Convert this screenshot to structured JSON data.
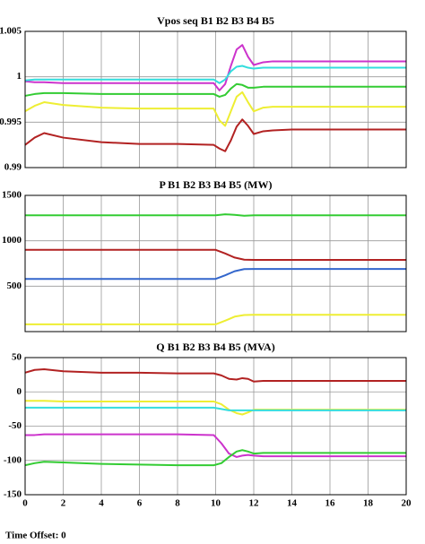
{
  "chart_data": [
    {
      "type": "line",
      "title": "Vpos seq B1 B2 B3 B4 B5",
      "x": [
        0,
        0.5,
        1,
        2,
        4,
        6,
        8,
        9.9,
        10.2,
        10.5,
        10.8,
        11.1,
        11.4,
        11.7,
        12,
        12.5,
        13,
        14,
        16,
        18,
        20
      ],
      "xlim": [
        0,
        20
      ],
      "xticks": [
        0,
        2,
        4,
        6,
        8,
        10,
        12,
        14,
        16,
        18,
        20
      ],
      "ylim": [
        0.99,
        1.005
      ],
      "yticks": [
        0.99,
        0.995,
        1,
        1.005
      ],
      "grid": true,
      "series": [
        {
          "color": "#cc33cc",
          "values": [
            0.9995,
            0.9994,
            0.9994,
            0.9993,
            0.9993,
            0.9993,
            0.9993,
            0.9993,
            0.9985,
            0.9992,
            1.0012,
            1.003,
            1.0035,
            1.0022,
            1.0013,
            1.0016,
            1.0017,
            1.0017,
            1.0017,
            1.0017,
            1.0017
          ]
        },
        {
          "color": "#33dddd",
          "values": [
            0.9996,
            0.9997,
            0.9997,
            0.9997,
            0.9997,
            0.9997,
            0.9997,
            0.9997,
            0.9993,
            0.9997,
            1.0006,
            1.0011,
            1.0012,
            1.001,
            1.0009,
            1.001,
            1.001,
            1.001,
            1.001,
            1.001,
            1.001
          ]
        },
        {
          "color": "#33cc33",
          "values": [
            0.9979,
            0.9981,
            0.9982,
            0.9982,
            0.9981,
            0.9981,
            0.9981,
            0.9981,
            0.9978,
            0.998,
            0.9987,
            0.9992,
            0.9991,
            0.9988,
            0.9988,
            0.9989,
            0.9989,
            0.9989,
            0.9989,
            0.9989,
            0.9989
          ]
        },
        {
          "color": "#eeee33",
          "values": [
            0.9962,
            0.9968,
            0.9972,
            0.9969,
            0.9966,
            0.9965,
            0.9965,
            0.9965,
            0.9952,
            0.9946,
            0.9962,
            0.9978,
            0.9983,
            0.9972,
            0.9962,
            0.9966,
            0.9967,
            0.9967,
            0.9967,
            0.9967,
            0.9967
          ]
        },
        {
          "color": "#b22222",
          "values": [
            0.9925,
            0.9933,
            0.9938,
            0.9933,
            0.9928,
            0.9926,
            0.9926,
            0.9925,
            0.9921,
            0.9918,
            0.993,
            0.9945,
            0.9953,
            0.9946,
            0.9937,
            0.994,
            0.9941,
            0.9942,
            0.9942,
            0.9942,
            0.9942
          ]
        }
      ]
    },
    {
      "type": "line",
      "title": "P B1 B2 B3 B4 B5 (MW)",
      "x": [
        0,
        2,
        4,
        6,
        8,
        10,
        10.5,
        11,
        11.5,
        12,
        14,
        16,
        18,
        20
      ],
      "xlim": [
        0,
        20
      ],
      "xticks": [
        0,
        2,
        4,
        6,
        8,
        10,
        12,
        14,
        16,
        18,
        20
      ],
      "ylim": [
        0,
        1500
      ],
      "yticks": [
        500,
        1000,
        1500
      ],
      "grid": true,
      "series": [
        {
          "color": "#33cc33",
          "values": [
            1280,
            1280,
            1280,
            1280,
            1280,
            1280,
            1292,
            1285,
            1276,
            1280,
            1280,
            1280,
            1280,
            1280
          ]
        },
        {
          "color": "#b22222",
          "values": [
            900,
            900,
            900,
            900,
            900,
            900,
            860,
            815,
            792,
            790,
            790,
            790,
            790,
            790
          ]
        },
        {
          "color": "#3366cc",
          "values": [
            580,
            580,
            580,
            580,
            580,
            580,
            620,
            665,
            688,
            690,
            690,
            690,
            690,
            690
          ]
        },
        {
          "color": "#eeee33",
          "values": [
            80,
            80,
            80,
            80,
            80,
            80,
            120,
            165,
            183,
            185,
            185,
            185,
            185,
            185
          ]
        }
      ]
    },
    {
      "type": "line",
      "title": "Q B1 B2 B3 B4 B5 (MVA)",
      "x": [
        0,
        0.5,
        1,
        2,
        4,
        6,
        8,
        9.9,
        10.3,
        10.7,
        11.1,
        11.4,
        11.7,
        12,
        12.5,
        13,
        14,
        16,
        18,
        20
      ],
      "xlim": [
        0,
        20
      ],
      "xticks": [
        0,
        2,
        4,
        6,
        8,
        10,
        12,
        14,
        16,
        18,
        20
      ],
      "ylim": [
        -150,
        50
      ],
      "yticks": [
        -150,
        -100,
        -50,
        0,
        50
      ],
      "grid": true,
      "series": [
        {
          "color": "#b22222",
          "values": [
            28,
            32,
            33,
            30,
            28,
            28,
            27,
            27,
            24,
            19,
            18,
            20,
            19,
            15,
            16,
            16,
            16,
            16,
            16,
            16
          ]
        },
        {
          "color": "#eeee33",
          "values": [
            -13,
            -13,
            -13,
            -14,
            -14,
            -14,
            -14,
            -14,
            -18,
            -26,
            -31,
            -33,
            -30,
            -26,
            -26,
            -26,
            -26,
            -26,
            -26,
            -26
          ]
        },
        {
          "color": "#33dddd",
          "values": [
            -23,
            -23,
            -23,
            -23,
            -23,
            -23,
            -23,
            -23,
            -25,
            -27,
            -27,
            -27,
            -27,
            -27,
            -27,
            -27,
            -27,
            -27,
            -27,
            -27
          ]
        },
        {
          "color": "#cc33cc",
          "values": [
            -63,
            -63,
            -62,
            -62,
            -62,
            -62,
            -62,
            -63,
            -75,
            -90,
            -95,
            -93,
            -92,
            -93,
            -94,
            -94,
            -94,
            -94,
            -94,
            -94
          ]
        },
        {
          "color": "#33cc33",
          "values": [
            -107,
            -104,
            -102,
            -103,
            -105,
            -106,
            -107,
            -107,
            -104,
            -95,
            -87,
            -85,
            -87,
            -90,
            -89,
            -89,
            -89,
            -89,
            -89,
            -89
          ]
        }
      ]
    }
  ],
  "footer": "Time Offset: 0"
}
